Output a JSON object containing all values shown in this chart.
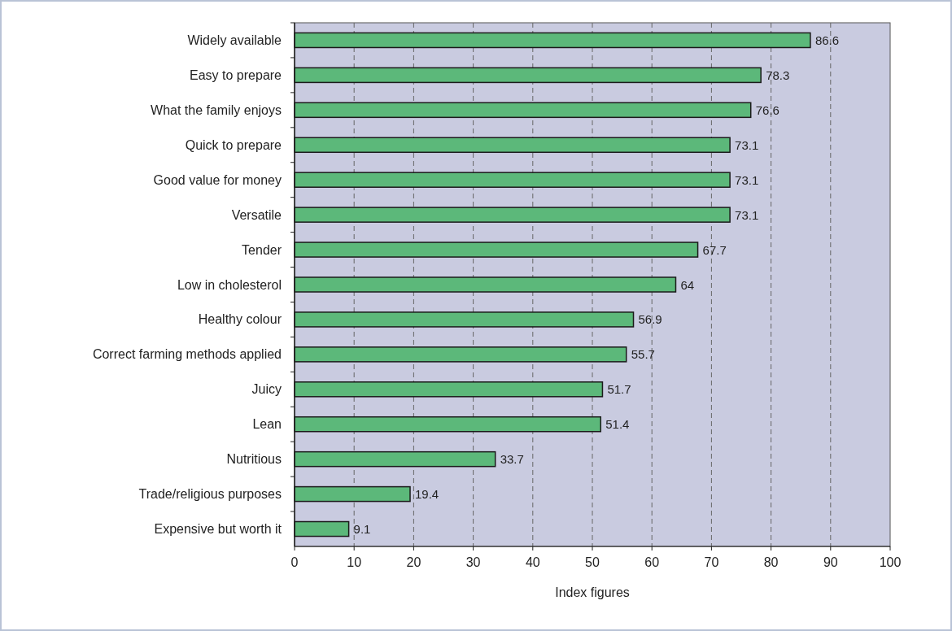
{
  "chart_data": {
    "type": "bar",
    "orientation": "horizontal",
    "xlabel": "Index figures",
    "categories": [
      "Widely available",
      "Easy to prepare",
      "What the family enjoys",
      "Quick to prepare",
      "Good value for money",
      "Versatile",
      "Tender",
      "Low in cholesterol",
      "Healthy colour",
      "Correct farming methods applied",
      "Juicy",
      "Lean",
      "Nutritious",
      "Trade/religious purposes",
      "Expensive but worth it"
    ],
    "values": [
      86.6,
      78.3,
      76.6,
      73.1,
      73.1,
      73.1,
      67.7,
      64,
      56.9,
      55.7,
      51.7,
      51.4,
      33.7,
      19.4,
      9.1
    ],
    "color": "#5cb87a",
    "xlim": [
      0,
      100
    ],
    "xticks": [
      0,
      10,
      20,
      30,
      40,
      50,
      60,
      70,
      80,
      90,
      100
    ],
    "grid": "x",
    "line_style": "dashed",
    "data_labels": true
  }
}
